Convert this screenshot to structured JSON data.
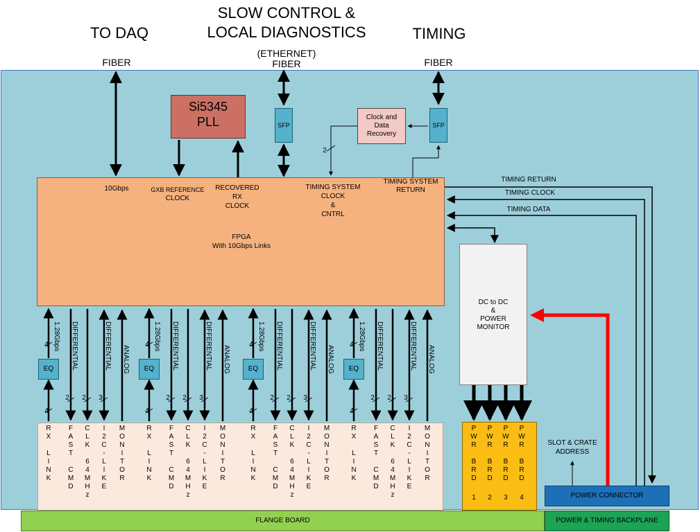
{
  "headings": {
    "to_daq": "TO DAQ",
    "slow_control": [
      "SLOW CONTROL  &",
      "LOCAL DIAGNOSTICS"
    ],
    "timing": "TIMING"
  },
  "fiber_labels": {
    "left": "FIBER",
    "ethernet": "(ETHERNET)",
    "middle": "FIBER",
    "right": "FIBER"
  },
  "pll": {
    "line1": "Si5345",
    "line2": "PLL"
  },
  "sfp_label": "SFP",
  "cdr": {
    "line1": "Clock and",
    "line2": "Data",
    "line3": "Recovery"
  },
  "fpga": {
    "link_rate": "10Gbps",
    "gxb_line1": "GXB REFERENCE",
    "gxb_line2": "CLOCK",
    "recovered": [
      "RECOVERED",
      "RX",
      "CLOCK"
    ],
    "timing_clock": [
      "TIMING SYSTEM",
      "CLOCK",
      "&",
      "CNTRL"
    ],
    "timing_return": [
      "TIMING SYSTEM",
      "RETURN"
    ],
    "title_line1": "FPGA",
    "title_line2": "With 10Gbps Links"
  },
  "bus_2": "2",
  "timing_lines": {
    "return": "TIMING RETURN",
    "clock": "TIMING CLOCK",
    "data": "TIMING DATA"
  },
  "dcdc": [
    "DC to DC",
    "&",
    "POWER",
    "MONITOR"
  ],
  "groups": [
    {
      "eq": "EQ",
      "rate": "1.28Gbps",
      "diff1": "DIFFERENTIAL",
      "diff2": "DIFFERENTIAL",
      "analog": "ANALOG",
      "bw4a": "4",
      "bw4b": "4",
      "bw2a": "2",
      "bw2b": "2",
      "bw3": "3"
    },
    {
      "eq": "EQ",
      "rate": "1.28Gbps",
      "diff1": "DIFFERENTIAL",
      "diff2": "DIFFERENTIAL",
      "analog": "ANALOG",
      "bw4a": "4",
      "bw4b": "4",
      "bw2a": "2",
      "bw2b": "2",
      "bw3": "3"
    },
    {
      "eq": "EQ",
      "rate": "1.28Gbps",
      "diff1": "DIFFERENTIAL",
      "diff2": "DIFFERENTIAL",
      "analog": "ANALOG",
      "bw4a": "4",
      "bw4b": "4",
      "bw2a": "2",
      "bw2b": "2",
      "bw3": "3"
    },
    {
      "eq": "EQ",
      "rate": "1.28Gbps",
      "diff1": "DIFFERENTIAL",
      "diff2": "DIFFERENTIAL",
      "analog": "ANALOG",
      "bw4a": "4",
      "bw4b": "4",
      "bw2a": "2",
      "bw2b": "2",
      "bw3": "3"
    }
  ],
  "connector_columns": [
    "R\nX\n\nL\nI\nN\nK",
    "F\nA\nS\nT\n\nC\nM\nD",
    "C\nL\nK\n\n6\n4\nM\nH\nz",
    "I\n2\nC\n-\nL\nI\nK\nE",
    "M\nO\nN\nI\nT\nO\nR"
  ],
  "pwr_boards": [
    {
      "text": "P\nW\nR\n\nB\nR\nD",
      "num": "1"
    },
    {
      "text": "P\nW\nR\n\nB\nR\nD",
      "num": "2"
    },
    {
      "text": "P\nW\nR\n\nB\nR\nD",
      "num": "3"
    },
    {
      "text": "P\nW\nR\n\nB\nR\nD",
      "num": "4"
    }
  ],
  "slot_crate": [
    "SLOT  & CRATE",
    "ADDRESS"
  ],
  "power_connector": "POWER CONNECTOR",
  "flange_board": "FLANGE BOARD",
  "backplane": "POWER  & TIMING BACKPLANE",
  "colors": {
    "main_bg": "#9dcfdb",
    "fpga": "#f5b27e",
    "pll": "#cd7064",
    "sfp": "#55b2cc",
    "red_arrow": "#ff0000",
    "pwr": "#fbbd14",
    "power_connector": "#1d70b8",
    "flange": "#92d150",
    "backplane": "#1da355"
  }
}
